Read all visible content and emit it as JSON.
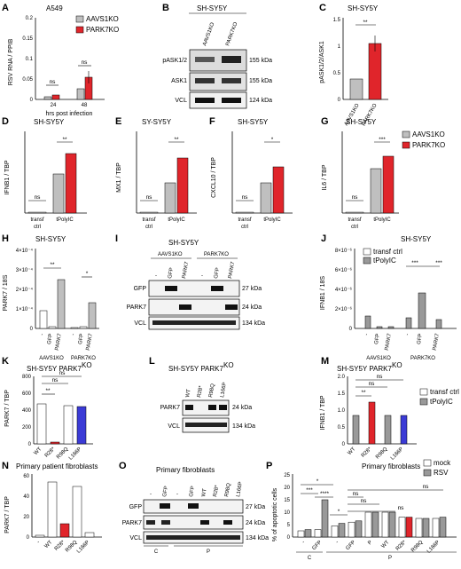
{
  "colors": {
    "grey": "#bfbfbf",
    "red": "#e0252b",
    "blue": "#3b3bd6",
    "white": "#ffffff",
    "black": "#000000"
  },
  "panels": {
    "A": {
      "letter": "A",
      "title": "A549",
      "ylabel": "RSV RNA / PPIB",
      "xlabel": "hrs post infection"
    },
    "B": {
      "letter": "B",
      "title": "SH-SY5Y"
    },
    "C": {
      "letter": "C",
      "title": "SH-SY5Y",
      "ylabel": "pASK1/2/ASK1"
    },
    "D": {
      "letter": "D",
      "title": "SH-SY5Y",
      "ylabel": "IFNB1 / TBP"
    },
    "E": {
      "letter": "E",
      "title": "SY-SY5Y",
      "ylabel": "MX1 / TBP"
    },
    "F": {
      "letter": "F",
      "title": "SH-SY5Y",
      "ylabel": "CXCL10 / TBP"
    },
    "G": {
      "letter": "G",
      "title": "SH-SY5Y",
      "ylabel": "IL6 / TBP"
    },
    "H": {
      "letter": "H",
      "title": "SH-SY5Y",
      "ylabel": "PARK7 / 18S"
    },
    "I": {
      "letter": "I",
      "title": "SH-SY5Y"
    },
    "J": {
      "letter": "J",
      "title": "SH-SY5Y",
      "ylabel": "IFNB1 / 18S"
    },
    "K": {
      "letter": "K",
      "title": "SH-SY5Y PARK7",
      "title_sup": "KO",
      "ylabel": "PARK7 / TBP"
    },
    "L": {
      "letter": "L",
      "title": "SH-SY5Y PARK7",
      "title_sup": "KO"
    },
    "M": {
      "letter": "M",
      "title": "SH-SY5Y PARK7",
      "title_sup": "KO",
      "ylabel": "IFNB1 / TBP"
    },
    "N": {
      "letter": "N",
      "title": "Primary patient fibroblasts",
      "ylabel": "PARK7 / TBP"
    },
    "O": {
      "letter": "O",
      "title": "Primary fibroblasts"
    },
    "P": {
      "letter": "P",
      "title": "Primary fibroblasts",
      "ylabel": "% of apoptotic cells"
    }
  },
  "legends": {
    "ko": [
      {
        "label": "AAVS1",
        "sup": "KO",
        "color": "#bfbfbf"
      },
      {
        "label": "PARK7",
        "sup": "KO",
        "color": "#e0252b"
      }
    ],
    "transf": [
      {
        "label": "transf ctrl",
        "color": "#ffffff"
      },
      {
        "label": "tPolyIC",
        "color": "#999999"
      }
    ],
    "rsv": [
      {
        "label": "mock",
        "color": "#ffffff"
      },
      {
        "label": "RSV",
        "color": "#999999"
      }
    ]
  },
  "labels": {
    "ns": "ns",
    "star1": "*",
    "star2": "**",
    "star3": "***",
    "star4": "****",
    "transf_ctrl": [
      "transf",
      "ctrl"
    ],
    "tpolyic": "tPolyIC",
    "t24": "24",
    "t48": "48",
    "aavs1ko": "AAVS1",
    "parkko": "PARK7",
    "ko": "KO",
    "aavs1ko_full": "AAVS1KO",
    "parkko_full": "PARK7KO",
    "pask": "pASK1/2",
    "ask": "ASK1",
    "vcl": "VCL",
    "gfp": "GFP",
    "park7": "PARK7",
    "kda155": "155 kDa",
    "kda124": "124 kDa",
    "kda27": "27 kDa",
    "kda24": "24 kDa",
    "kda134": "134 kDa",
    "dash": "-",
    "wt": "WT",
    "r28": "R28*",
    "r98": "R98Q",
    "l166": "L166P",
    "c": "C",
    "p": "P"
  },
  "axes": {
    "A": {
      "ticks": [
        "0",
        "0.05",
        "0.1",
        "0.15",
        "0.2"
      ],
      "ylim": [
        0,
        0.2
      ]
    },
    "C": {
      "ticks": [
        "0",
        "0.5",
        "1",
        "1.5"
      ],
      "ylim": [
        0,
        1.5
      ]
    },
    "D": {
      "ticks": [
        "0",
        "0.0005",
        "0.001",
        "0.0015",
        "0.002"
      ],
      "ylim": [
        0,
        0.002
      ]
    },
    "E": {
      "ticks": [
        "0",
        "10",
        "20",
        "30",
        "40",
        "50"
      ],
      "ylim": [
        0,
        50
      ]
    },
    "F": {
      "ticks": [
        "0",
        "50",
        "100",
        "150",
        "200"
      ],
      "ylim": [
        0,
        200
      ]
    },
    "G": {
      "ticks": [
        "0",
        "50",
        "100",
        "150",
        "200"
      ],
      "ylim": [
        0,
        200
      ]
    },
    "H": {
      "ticks": [
        "0",
        "1×10⁻⁴",
        "2×10⁻⁴",
        "3×10⁻⁴",
        "4×10⁻⁴"
      ],
      "ylim": [
        0,
        0.0004
      ]
    },
    "J": {
      "ticks": [
        "0",
        "2×10⁻⁶",
        "4×10⁻⁶",
        "6×10⁻⁶",
        "8×10⁻⁶"
      ],
      "ylim": [
        0,
        8e-06
      ]
    },
    "K": {
      "ticks": [
        "0",
        "200",
        "400",
        "600",
        "800"
      ],
      "ylim": [
        0,
        800
      ]
    },
    "M": {
      "ticks": [
        "0",
        "0.5",
        "1.0",
        "1.5",
        "2.0"
      ],
      "ylim": [
        0,
        2
      ]
    },
    "N": {
      "ticks": [
        "0",
        "20",
        "40",
        "60"
      ],
      "ylim": [
        0,
        60
      ]
    },
    "P": {
      "ticks": [
        "0",
        "5",
        "10",
        "15",
        "20",
        "25"
      ],
      "ylim": [
        0,
        25
      ]
    }
  },
  "chart_data": [
    {
      "panel": "A",
      "type": "bar",
      "categories": [
        "24",
        "48"
      ],
      "series": [
        {
          "name": "AAVS1KO",
          "values": [
            0.005,
            0.025
          ]
        },
        {
          "name": "PARK7KO",
          "values": [
            0.01,
            0.055
          ]
        }
      ],
      "ylim": [
        0,
        0.2
      ]
    },
    {
      "panel": "C",
      "type": "bar",
      "categories": [
        "AAVS1KO",
        "PARK7KO"
      ],
      "values": [
        0.38,
        1.05
      ],
      "ylim": [
        0,
        1.5
      ]
    },
    {
      "panel": "D",
      "type": "bar",
      "categories": [
        "transf ctrl",
        "tPolyIC"
      ],
      "series": [
        {
          "name": "AAVS1KO",
          "values": [
            1e-05,
            0.00105
          ]
        },
        {
          "name": "PARK7KO",
          "values": [
            1e-05,
            0.0016
          ]
        }
      ],
      "ylim": [
        0,
        0.002
      ]
    },
    {
      "panel": "E",
      "type": "bar",
      "categories": [
        "transf ctrl",
        "tPolyIC"
      ],
      "series": [
        {
          "name": "AAVS1KO",
          "values": [
            0.5,
            18
          ]
        },
        {
          "name": "PARK7KO",
          "values": [
            0.5,
            34
          ]
        }
      ],
      "ylim": [
        0,
        50
      ]
    },
    {
      "panel": "F",
      "type": "bar",
      "categories": [
        "transf ctrl",
        "tPolyIC"
      ],
      "series": [
        {
          "name": "AAVS1KO",
          "values": [
            1,
            75
          ]
        },
        {
          "name": "PARK7KO",
          "values": [
            1,
            115
          ]
        }
      ],
      "ylim": [
        0,
        200
      ]
    },
    {
      "panel": "G",
      "type": "bar",
      "categories": [
        "transf ctrl",
        "tPolyIC"
      ],
      "series": [
        {
          "name": "AAVS1KO",
          "values": [
            1,
            110
          ]
        },
        {
          "name": "PARK7KO",
          "values": [
            1,
            140
          ]
        }
      ],
      "ylim": [
        0,
        200
      ]
    },
    {
      "panel": "H",
      "type": "bar",
      "categories": [
        "-",
        "GFP",
        "PARK7",
        "-",
        "GFP",
        "PARK7"
      ],
      "values": [
        9e-05,
        1e-05,
        0.00025,
        0.0,
        1e-05,
        0.00013
      ],
      "ylim": [
        0,
        0.0004
      ]
    },
    {
      "panel": "J",
      "type": "bar",
      "categories": [
        "-",
        "GFP",
        "PARK7",
        "-",
        "GFP",
        "PARK7"
      ],
      "series": [
        {
          "name": "transf ctrl",
          "values": [
            1e-07,
            1e-07,
            1e-07,
            1e-07,
            1e-07,
            1e-07
          ]
        },
        {
          "name": "tPolyIC",
          "values": [
            1.2e-06,
            2e-07,
            2e-07,
            2e-06,
            6e-06,
            1.8e-06
          ]
        }
      ],
      "ylim": [
        0,
        8e-06
      ]
    },
    {
      "panel": "K",
      "type": "bar",
      "categories": [
        "WT",
        "R28*",
        "R98Q",
        "L166P"
      ],
      "values": [
        470,
        20,
        455,
        445
      ],
      "ylim": [
        0,
        800
      ]
    },
    {
      "panel": "M",
      "type": "bar",
      "categories": [
        "WT",
        "R28*",
        "R98Q",
        "L166P"
      ],
      "series": [
        {
          "name": "transf ctrl",
          "values": [
            0.01,
            0.01,
            0.01,
            0.01
          ]
        },
        {
          "name": "tPolyIC",
          "values": [
            0.85,
            1.25,
            0.85,
            0.85
          ]
        }
      ],
      "ylim": [
        0,
        2
      ]
    },
    {
      "panel": "N",
      "type": "bar",
      "categories": [
        "-",
        "WT",
        "R28*",
        "R98Q",
        "L166P"
      ],
      "values": [
        1,
        54,
        13,
        50,
        5
      ],
      "ylim": [
        0,
        60
      ]
    },
    {
      "panel": "P",
      "type": "bar",
      "categories": [
        "-",
        "GFP",
        "-",
        "GFP",
        "P",
        "WT",
        "R28*",
        "R98Q",
        "L166P"
      ],
      "series": [
        {
          "name": "mock",
          "values": [
            2.5,
            3,
            4.5,
            6,
            10,
            10,
            8,
            7.5,
            7.5
          ]
        },
        {
          "name": "RSV",
          "values": [
            3,
            15,
            5.5,
            6.5,
            10,
            10,
            8,
            7.5,
            8
          ]
        }
      ],
      "ylim": [
        0,
        25
      ]
    }
  ]
}
